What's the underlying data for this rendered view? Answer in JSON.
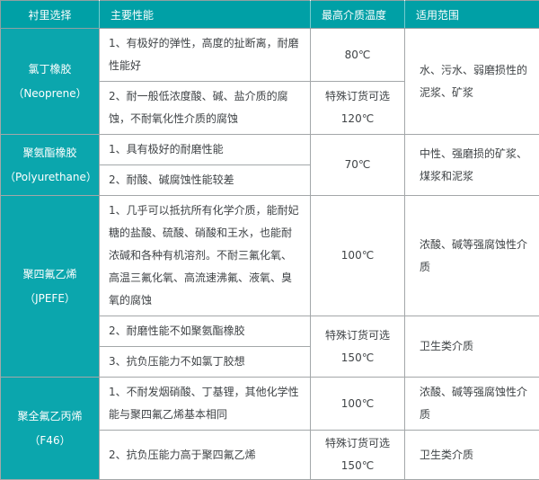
{
  "colors": {
    "header_teal": "#00a0a6",
    "cell_teal": "#0ba6ad",
    "solid_border": "#a3a7a9",
    "dashed_border": "#cfd3d5",
    "body_text": "#3f4346",
    "header_text": "#ffffff"
  },
  "header": {
    "columns": [
      "衬里选择",
      "主要性能",
      "最高介质温度",
      "适用范围"
    ]
  },
  "rows": [
    {
      "name": "氯丁橡胶",
      "alias": "（Neoprene）",
      "perf1": "1、有极好的弹性，高度的扯断离，耐磨性能好",
      "perf2": "2、耐一般低浓度酸、碱、盐介质的腐蚀，不耐氧化性介质的腐蚀",
      "temp1": "80℃",
      "temp2": "特殊订货可选\n120℃",
      "range": "水、污水、弱磨损性的泥浆、矿浆"
    },
    {
      "name": "聚氨酯橡胶",
      "alias": "（Polyurethane）",
      "perf1": "1、具有极好的耐磨性能",
      "perf2": "2、耐酸、碱腐蚀性能较差",
      "temp": "70℃",
      "range": "中性、强磨损的矿浆、煤浆和泥浆"
    },
    {
      "name": "聚四氟乙烯",
      "alias": "（JPEFE）",
      "perf1": "1、几乎可以抵抗所有化学介质，能耐妃糖的盐酸、硫酸、硝酸和王水，也能耐浓碱和各种有机溶剂。不耐三氟化氧、高温三氟化氧、高流速沸氟、液氧、臭氧的腐蚀",
      "perf2": "2、耐磨性能不如聚氨酯橡胶",
      "perf3": "3、抗负压能力不如氯丁胶想",
      "temp1": "100℃",
      "temp2": "特殊订货可选\n150℃",
      "range1": "浓酸、碱等强腐蚀性介质",
      "range2": "卫生类介质"
    },
    {
      "name": "聚全氟乙丙烯",
      "alias": "（F46）",
      "perf1": "1、不耐发烟硝酸、丁基锂，其他化学性能与聚四氟乙烯基本相同",
      "perf2": "2、抗负压能力高于聚四氟乙烯",
      "temp1": "100℃",
      "temp2": "特殊订货可选\n150℃",
      "range1": "浓酸、碱等强腐蚀性介质",
      "range2": "卫生类介质"
    }
  ]
}
